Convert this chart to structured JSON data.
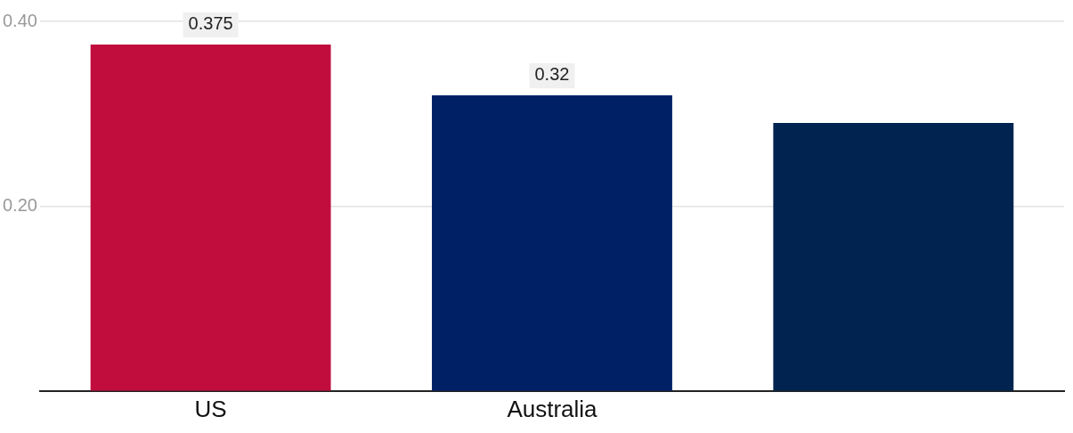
{
  "chart_data": {
    "type": "bar",
    "categories": [
      "US",
      "Australia",
      null
    ],
    "values": [
      0.375,
      0.32,
      0.29
    ],
    "colors": [
      "#c00d3e",
      "#002066",
      "#00244f"
    ],
    "value_labels": [
      "0.375",
      "0.32",
      null
    ],
    "ylim": [
      0,
      0.4
    ],
    "yticks": [
      {
        "value": 0.2,
        "label": "0.20"
      },
      {
        "value": 0.4,
        "label": "0.40"
      }
    ],
    "grid": "y",
    "legend": false
  }
}
